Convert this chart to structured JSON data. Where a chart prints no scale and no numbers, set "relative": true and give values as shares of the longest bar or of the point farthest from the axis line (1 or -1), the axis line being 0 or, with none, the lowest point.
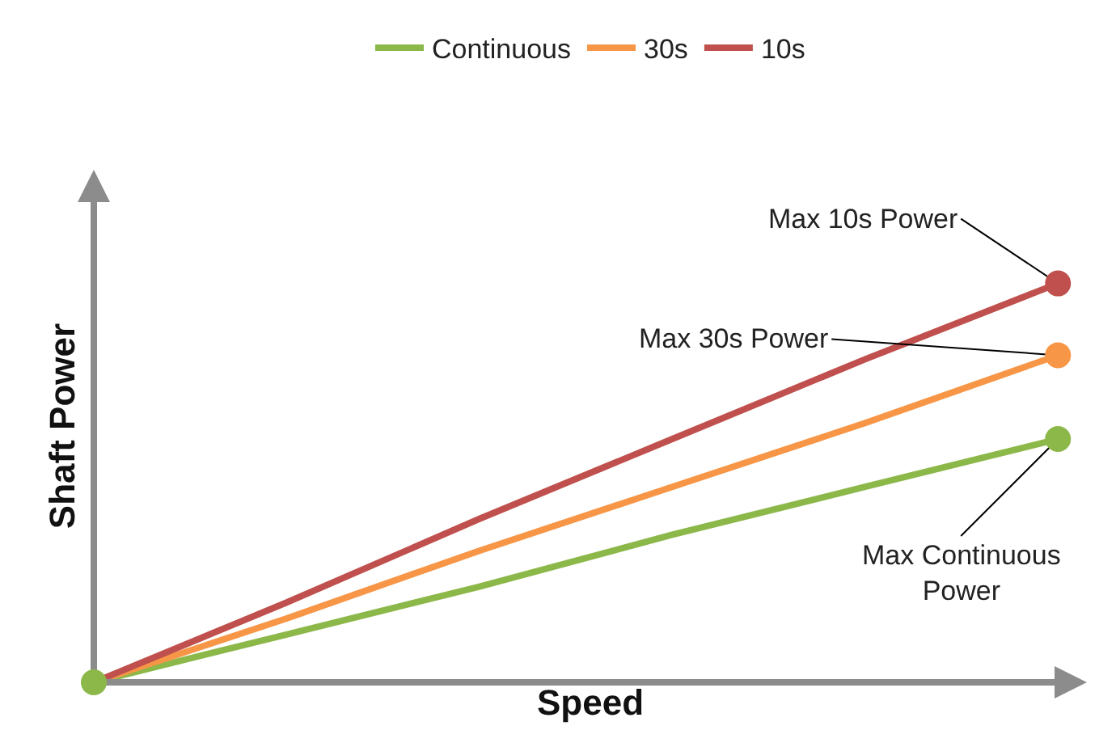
{
  "chart_data": {
    "type": "line",
    "xlabel": "Speed",
    "ylabel": "Shaft Power",
    "relative": true,
    "categories": [
      null,
      null,
      null,
      null,
      null,
      null
    ],
    "series": [
      {
        "name": "Continuous",
        "color": "#8cb84a",
        "values": [
          0,
          0.12,
          0.24,
          0.37,
          0.49,
          0.61
        ]
      },
      {
        "name": "30s",
        "color": "#f79646",
        "values": [
          0,
          0.16,
          0.33,
          0.49,
          0.65,
          0.82
        ]
      },
      {
        "name": "10s",
        "color": "#c0504d",
        "values": [
          0,
          0.2,
          0.41,
          0.61,
          0.81,
          1
        ]
      }
    ],
    "annotations": [
      "Max 10s Power",
      "Max 30s Power",
      "Max Continuous Power"
    ],
    "legend": "top",
    "grid": false,
    "line_style": "solid"
  }
}
